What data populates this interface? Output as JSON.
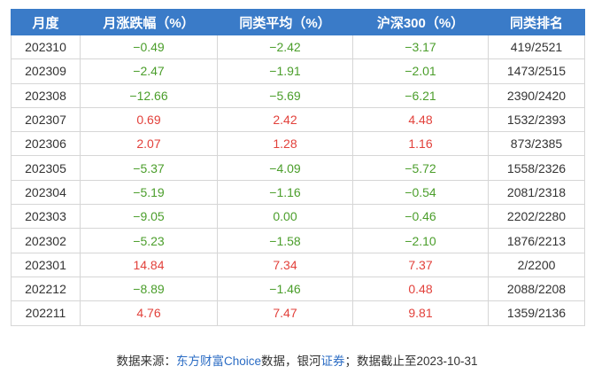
{
  "table": {
    "header": [
      "月度",
      "月涨跌幅（%）",
      "同类平均（%）",
      "沪深300（%）",
      "同类排名"
    ],
    "rows": [
      [
        "202310",
        "−0.49",
        "−2.42",
        "−3.17",
        "419/2521"
      ],
      [
        "202309",
        "−2.47",
        "−1.91",
        "−2.01",
        "1473/2515"
      ],
      [
        "202308",
        "−12.66",
        "−5.69",
        "−6.21",
        "2390/2420"
      ],
      [
        "202307",
        "0.69",
        "2.42",
        "4.48",
        "1532/2393"
      ],
      [
        "202306",
        "2.07",
        "1.28",
        "1.16",
        "873/2385"
      ],
      [
        "202305",
        "−5.37",
        "−4.09",
        "−5.72",
        "1558/2326"
      ],
      [
        "202304",
        "−5.19",
        "−1.16",
        "−0.54",
        "2081/2318"
      ],
      [
        "202303",
        "−9.05",
        "0.00",
        "−0.46",
        "2202/2280"
      ],
      [
        "202302",
        "−5.23",
        "−1.58",
        "−2.10",
        "1876/2213"
      ],
      [
        "202301",
        "14.84",
        "7.34",
        "7.37",
        "2/2200"
      ],
      [
        "202212",
        "−8.89",
        "−1.46",
        "0.48",
        "2088/2208"
      ],
      [
        "202211",
        "4.76",
        "7.47",
        "9.81",
        "1359/2136"
      ]
    ],
    "colors": {
      "up": "#e2413b",
      "down": "#4b9e2b"
    }
  },
  "footer": [
    "数据来源：",
    "东方财富Choice",
    "数据，银河",
    "证券",
    "；数据截止至2023-10-31"
  ]
}
